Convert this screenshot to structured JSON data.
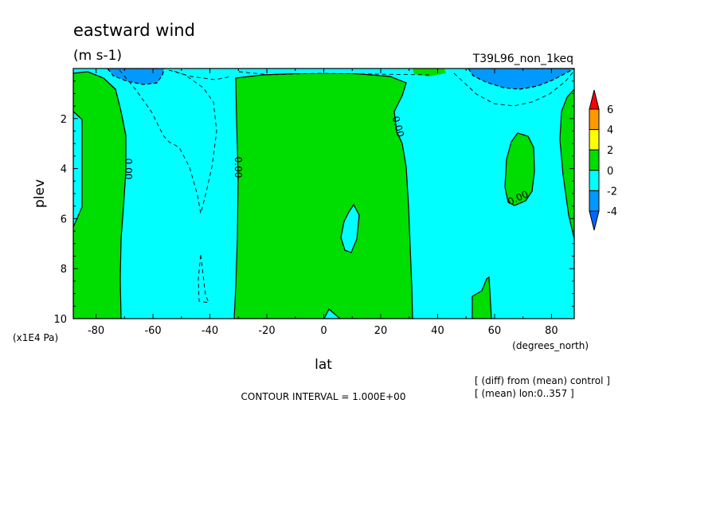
{
  "chart_data": {
    "type": "contour",
    "title": "eastward wind",
    "units": "(m s-1)",
    "run_label": "T39L96_non_1keq",
    "xlabel": "lat",
    "x_units": "(degrees_north)",
    "ylabel": "plev",
    "y_units": "(x1E4 Pa)",
    "xlim": [
      -88,
      88
    ],
    "ylim": [
      10,
      0
    ],
    "x_ticks": [
      -80,
      -60,
      -40,
      -20,
      0,
      20,
      40,
      60,
      80
    ],
    "x_tick_labels": [
      "-80",
      "-60",
      "-40",
      "-20",
      "0",
      "20",
      "40",
      "60",
      "80"
    ],
    "y_ticks": [
      2,
      4,
      6,
      8,
      10
    ],
    "y_tick_labels": [
      "2",
      "4",
      "6",
      "8",
      "10"
    ],
    "contour_interval_text": "CONTOUR INTERVAL = 1.000E+00",
    "contour_labels": [
      "0.00",
      "0.00",
      "0.00",
      "0.00"
    ],
    "notes": [
      "[ (diff) from (mean) control ]",
      "[ (mean) lon:0..357 ]"
    ],
    "colorbar": {
      "levels": [
        6,
        4,
        2,
        0,
        -2,
        -4
      ],
      "level_labels": [
        "6",
        "4",
        "2",
        "0",
        "-2",
        "-4"
      ],
      "colors": [
        "#ff0000",
        "#ff9900",
        "#ffff00",
        "#00dd00",
        "#00ffff",
        "#0099ff",
        "#0066ff"
      ]
    },
    "fill_colors": {
      "neg_strong": "#0099ff",
      "neg": "#00ffff",
      "pos": "#00dd00"
    },
    "regions": [
      {
        "name": "positive-band-south",
        "value_range": [
          0,
          2
        ],
        "lat": [
          -88,
          -70
        ],
        "plev": [
          0.2,
          10
        ]
      },
      {
        "name": "positive-band-tropics",
        "value_range": [
          0,
          2
        ],
        "lat": [
          -30,
          30
        ],
        "plev": [
          0.3,
          10
        ]
      },
      {
        "name": "positive-patch-north",
        "value_range": [
          0,
          2
        ],
        "lat": [
          61,
          75
        ],
        "plev": [
          2.6,
          5.5
        ]
      },
      {
        "name": "positive-patch-north-lower",
        "value_range": [
          0,
          2
        ],
        "lat": [
          52,
          61
        ],
        "plev": [
          8.3,
          10
        ]
      },
      {
        "name": "positive-edge-north",
        "value_range": [
          0,
          2
        ],
        "lat": [
          82,
          88
        ],
        "plev": [
          0.8,
          7
        ]
      },
      {
        "name": "negative-core-north",
        "value_range": [
          -4,
          -2
        ],
        "lat": [
          50,
          88
        ],
        "plev": [
          0,
          0.8
        ]
      },
      {
        "name": "negative-core-south",
        "value_range": [
          -4,
          -2
        ],
        "lat": [
          -70,
          -56
        ],
        "plev": [
          0,
          0.6
        ]
      }
    ]
  }
}
